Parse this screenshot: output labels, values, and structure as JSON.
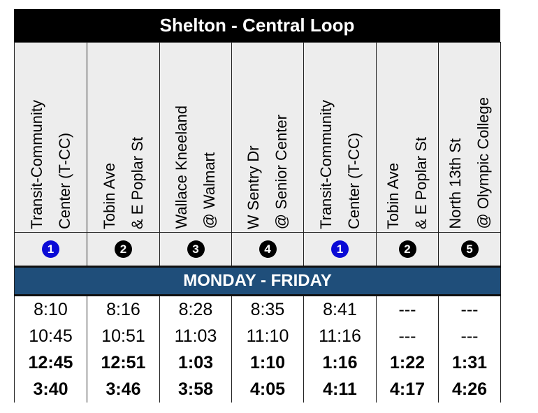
{
  "title": "Shelton - Central Loop",
  "stops": [
    {
      "line1": "Transit-Community",
      "line2": "Center (T-CC)",
      "num": "1",
      "color": "#0a0ad6"
    },
    {
      "line1": "Tobin Ave",
      "line2": "& E Poplar St",
      "num": "2",
      "color": "#000000"
    },
    {
      "line1": "Wallace Kneeland",
      "line2": "@ Walmart",
      "num": "3",
      "color": "#000000"
    },
    {
      "line1": "W Sentry Dr",
      "line2": "@ Senior Center",
      "num": "4",
      "color": "#000000"
    },
    {
      "line1": "Transit-Community",
      "line2": "Center (T-CC)",
      "num": "1",
      "color": "#0a0ad6"
    },
    {
      "line1": "Tobin Ave",
      "line2": "& E Poplar St",
      "num": "2",
      "color": "#000000"
    },
    {
      "line1": "North 13th St",
      "line2": "@ Olympic College",
      "num": "5",
      "color": "#000000"
    }
  ],
  "schedule_label": "MONDAY - FRIDAY",
  "trips": [
    {
      "bold": false,
      "times": [
        "8:10",
        "8:16",
        "8:28",
        "8:35",
        "8:41",
        "---",
        "---"
      ]
    },
    {
      "bold": false,
      "times": [
        "10:45",
        "10:51",
        "11:03",
        "11:10",
        "11:16",
        "---",
        "---"
      ]
    },
    {
      "bold": true,
      "times": [
        "12:45",
        "12:51",
        "1:03",
        "1:10",
        "1:16",
        "1:22",
        "1:31"
      ]
    },
    {
      "bold": true,
      "times": [
        "3:40",
        "3:46",
        "3:58",
        "4:05",
        "4:11",
        "4:17",
        "4:26"
      ]
    }
  ]
}
